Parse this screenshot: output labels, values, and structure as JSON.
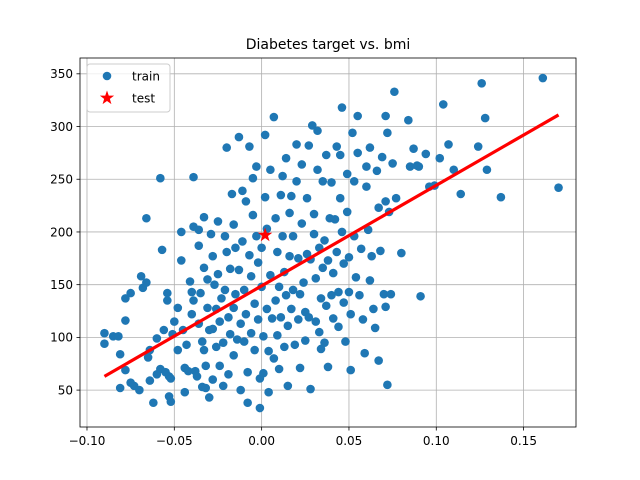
{
  "chart_data": {
    "type": "scatter",
    "title": "Diabetes target vs. bmi",
    "xlabel": "",
    "ylabel": "",
    "xlim": [
      -0.104,
      0.18
    ],
    "ylim": [
      15,
      365
    ],
    "xticks": [
      -0.1,
      -0.05,
      0.0,
      0.05,
      0.1,
      0.15
    ],
    "xtick_labels": [
      "−0.10",
      "−0.05",
      "0.00",
      "0.05",
      "0.10",
      "0.15"
    ],
    "yticks": [
      50,
      100,
      150,
      200,
      250,
      300,
      350
    ],
    "ytick_labels": [
      "50",
      "100",
      "150",
      "200",
      "250",
      "300",
      "350"
    ],
    "grid": true,
    "legend": {
      "placement": "top-left",
      "entries": [
        {
          "label": "train",
          "marker": "circle",
          "color": "#1f77b4"
        },
        {
          "label": "test",
          "marker": "star",
          "color": "#ff0000"
        }
      ]
    },
    "series": [
      {
        "name": "train",
        "kind": "scatter",
        "color": "#1f77b4",
        "points": [
          [
            -0.09,
            94
          ],
          [
            -0.09,
            104
          ],
          [
            -0.085,
            101
          ],
          [
            -0.082,
            101
          ],
          [
            -0.081,
            84
          ],
          [
            -0.081,
            52
          ],
          [
            -0.078,
            69
          ],
          [
            -0.078,
            116
          ],
          [
            -0.078,
            137
          ],
          [
            -0.075,
            142
          ],
          [
            -0.075,
            57
          ],
          [
            -0.073,
            54
          ],
          [
            -0.07,
            50
          ],
          [
            -0.069,
            158
          ],
          [
            -0.068,
            147
          ],
          [
            -0.066,
            213
          ],
          [
            -0.066,
            152
          ],
          [
            -0.065,
            81
          ],
          [
            -0.064,
            88
          ],
          [
            -0.064,
            59
          ],
          [
            -0.062,
            38
          ],
          [
            -0.06,
            99
          ],
          [
            -0.06,
            65
          ],
          [
            -0.058,
            251
          ],
          [
            -0.058,
            70
          ],
          [
            -0.057,
            183
          ],
          [
            -0.056,
            107
          ],
          [
            -0.055,
            67
          ],
          [
            -0.054,
            142
          ],
          [
            -0.054,
            135
          ],
          [
            -0.053,
            63
          ],
          [
            -0.053,
            44
          ],
          [
            -0.052,
            39
          ],
          [
            -0.052,
            61
          ],
          [
            -0.051,
            103
          ],
          [
            -0.05,
            115
          ],
          [
            -0.048,
            128
          ],
          [
            -0.048,
            88
          ],
          [
            -0.046,
            200
          ],
          [
            -0.046,
            173
          ],
          [
            -0.045,
            107
          ],
          [
            -0.044,
            71
          ],
          [
            -0.044,
            48
          ],
          [
            -0.043,
            93
          ],
          [
            -0.042,
            68
          ],
          [
            -0.041,
            153
          ],
          [
            -0.04,
            143
          ],
          [
            -0.04,
            122
          ],
          [
            -0.039,
            252
          ],
          [
            -0.039,
            205
          ],
          [
            -0.039,
            135
          ],
          [
            -0.038,
            68
          ],
          [
            -0.037,
            63
          ],
          [
            -0.036,
            202
          ],
          [
            -0.036,
            187
          ],
          [
            -0.036,
            113
          ],
          [
            -0.035,
            142
          ],
          [
            -0.034,
            96
          ],
          [
            -0.034,
            53
          ],
          [
            -0.033,
            214
          ],
          [
            -0.033,
            166
          ],
          [
            -0.033,
            88
          ],
          [
            -0.032,
            73
          ],
          [
            -0.032,
            52
          ],
          [
            -0.031,
            155
          ],
          [
            -0.031,
            128
          ],
          [
            -0.03,
            107
          ],
          [
            -0.03,
            43
          ],
          [
            -0.029,
            198
          ],
          [
            -0.028,
            177
          ],
          [
            -0.028,
            108
          ],
          [
            -0.028,
            60
          ],
          [
            -0.027,
            150
          ],
          [
            -0.026,
            127
          ],
          [
            -0.026,
            91
          ],
          [
            -0.025,
            210
          ],
          [
            -0.025,
            160
          ],
          [
            -0.024,
            115
          ],
          [
            -0.024,
            73
          ],
          [
            -0.023,
            137
          ],
          [
            -0.022,
            95
          ],
          [
            -0.022,
            54
          ],
          [
            -0.021,
            196
          ],
          [
            -0.021,
            145
          ],
          [
            -0.02,
            280
          ],
          [
            -0.02,
            181
          ],
          [
            -0.019,
            119
          ],
          [
            -0.019,
            65
          ],
          [
            -0.018,
            165
          ],
          [
            -0.018,
            103
          ],
          [
            -0.017,
            236
          ],
          [
            -0.016,
            207
          ],
          [
            -0.016,
            128
          ],
          [
            -0.016,
            83
          ],
          [
            -0.015,
            185
          ],
          [
            -0.015,
            141
          ],
          [
            -0.014,
            98
          ],
          [
            -0.013,
            290
          ],
          [
            -0.013,
            164
          ],
          [
            -0.012,
            113
          ],
          [
            -0.012,
            50
          ],
          [
            -0.011,
            239
          ],
          [
            -0.011,
            191
          ],
          [
            -0.01,
            145
          ],
          [
            -0.01,
            96
          ],
          [
            -0.009,
            229
          ],
          [
            -0.009,
            122
          ],
          [
            -0.008,
            67
          ],
          [
            -0.008,
            38
          ],
          [
            -0.007,
            281
          ],
          [
            -0.007,
            178
          ],
          [
            -0.006,
            158
          ],
          [
            -0.006,
            104
          ],
          [
            -0.005,
            251
          ],
          [
            -0.005,
            216
          ],
          [
            -0.004,
            132
          ],
          [
            -0.004,
            88
          ],
          [
            -0.003,
            262
          ],
          [
            -0.003,
            196
          ],
          [
            -0.002,
            171
          ],
          [
            -0.002,
            117
          ],
          [
            -0.001,
            61
          ],
          [
            -0.001,
            33
          ],
          [
            0.0,
            185
          ],
          [
            0.0,
            148
          ],
          [
            0.001,
            101
          ],
          [
            0.001,
            66
          ],
          [
            0.002,
            292
          ],
          [
            0.002,
            233
          ],
          [
            0.003,
            203
          ],
          [
            0.003,
            127
          ],
          [
            0.004,
            87
          ],
          [
            0.004,
            48
          ],
          [
            0.005,
            259
          ],
          [
            0.005,
            159
          ],
          [
            0.006,
            118
          ],
          [
            0.007,
            309
          ],
          [
            0.007,
            80
          ],
          [
            0.008,
            213
          ],
          [
            0.008,
            135
          ],
          [
            0.009,
            181
          ],
          [
            0.009,
            102
          ],
          [
            0.01,
            148
          ],
          [
            0.01,
            70
          ],
          [
            0.011,
            235
          ],
          [
            0.011,
            119
          ],
          [
            0.012,
            253
          ],
          [
            0.012,
            196
          ],
          [
            0.013,
            162
          ],
          [
            0.013,
            91
          ],
          [
            0.014,
            270
          ],
          [
            0.014,
            140
          ],
          [
            0.015,
            111
          ],
          [
            0.015,
            54
          ],
          [
            0.016,
            218
          ],
          [
            0.016,
            177
          ],
          [
            0.017,
            234
          ],
          [
            0.017,
            127
          ],
          [
            0.018,
            196
          ],
          [
            0.018,
            145
          ],
          [
            0.019,
            93
          ],
          [
            0.02,
            283
          ],
          [
            0.02,
            248
          ],
          [
            0.021,
            175
          ],
          [
            0.021,
            117
          ],
          [
            0.022,
            141
          ],
          [
            0.022,
            71
          ],
          [
            0.023,
            264
          ],
          [
            0.023,
            208
          ],
          [
            0.024,
            152
          ],
          [
            0.025,
            124
          ],
          [
            0.025,
            97
          ],
          [
            0.026,
            232
          ],
          [
            0.026,
            179
          ],
          [
            0.027,
            282
          ],
          [
            0.027,
            119
          ],
          [
            0.028,
            174
          ],
          [
            0.028,
            51
          ],
          [
            0.029,
            301
          ],
          [
            0.03,
            217
          ],
          [
            0.03,
            198
          ],
          [
            0.031,
            156
          ],
          [
            0.031,
            115
          ],
          [
            0.032,
            296
          ],
          [
            0.032,
            259
          ],
          [
            0.033,
            185
          ],
          [
            0.033,
            105
          ],
          [
            0.034,
            137
          ],
          [
            0.034,
            89
          ],
          [
            0.035,
            248
          ],
          [
            0.035,
            166
          ],
          [
            0.036,
            192
          ],
          [
            0.036,
            95
          ],
          [
            0.037,
            273
          ],
          [
            0.037,
            130
          ],
          [
            0.038,
            173
          ],
          [
            0.038,
            72
          ],
          [
            0.039,
            213
          ],
          [
            0.04,
            140
          ],
          [
            0.04,
            247
          ],
          [
            0.041,
            161
          ],
          [
            0.041,
            118
          ],
          [
            0.042,
            212
          ],
          [
            0.043,
            281
          ],
          [
            0.043,
            181
          ],
          [
            0.044,
            143
          ],
          [
            0.044,
            110
          ],
          [
            0.045,
            273
          ],
          [
            0.045,
            232
          ],
          [
            0.046,
            318
          ],
          [
            0.046,
            200
          ],
          [
            0.047,
            170
          ],
          [
            0.047,
            133
          ],
          [
            0.048,
            96
          ],
          [
            0.049,
            255
          ],
          [
            0.049,
            219
          ],
          [
            0.05,
            143
          ],
          [
            0.05,
            176
          ],
          [
            0.051,
            122
          ],
          [
            0.051,
            69
          ],
          [
            0.052,
            294
          ],
          [
            0.053,
            196
          ],
          [
            0.053,
            248
          ],
          [
            0.054,
            157
          ],
          [
            0.055,
            310
          ],
          [
            0.055,
            275
          ],
          [
            0.056,
            140
          ],
          [
            0.057,
            184
          ],
          [
            0.058,
            117
          ],
          [
            0.059,
            85
          ],
          [
            0.06,
            243
          ],
          [
            0.06,
            262
          ],
          [
            0.061,
            202
          ],
          [
            0.062,
            280
          ],
          [
            0.062,
            154
          ],
          [
            0.063,
            177
          ],
          [
            0.064,
            127
          ],
          [
            0.065,
            109
          ],
          [
            0.066,
            258
          ],
          [
            0.067,
            223
          ],
          [
            0.067,
            78
          ],
          [
            0.068,
            182
          ],
          [
            0.069,
            271
          ],
          [
            0.07,
            141
          ],
          [
            0.071,
            310
          ],
          [
            0.071,
            229
          ],
          [
            0.071,
            129
          ],
          [
            0.072,
            294
          ],
          [
            0.072,
            55
          ],
          [
            0.073,
            219
          ],
          [
            0.074,
            141
          ],
          [
            0.075,
            265
          ],
          [
            0.076,
            333
          ],
          [
            0.077,
            232
          ],
          [
            0.08,
            180
          ],
          [
            0.084,
            306
          ],
          [
            0.085,
            262
          ],
          [
            0.087,
            279
          ],
          [
            0.089,
            263
          ],
          [
            0.09,
            262
          ],
          [
            0.091,
            139
          ],
          [
            0.094,
            274
          ],
          [
            0.096,
            243
          ],
          [
            0.099,
            244
          ],
          [
            0.102,
            270
          ],
          [
            0.104,
            321
          ],
          [
            0.107,
            283
          ],
          [
            0.11,
            259
          ],
          [
            0.114,
            236
          ],
          [
            0.124,
            281
          ],
          [
            0.126,
            341
          ],
          [
            0.128,
            308
          ],
          [
            0.129,
            259
          ],
          [
            0.137,
            233
          ],
          [
            0.161,
            346
          ],
          [
            0.17,
            242
          ]
        ]
      },
      {
        "name": "test",
        "kind": "scatter",
        "marker": "star",
        "color": "#ff0000",
        "points": [
          [
            0.002,
            197
          ]
        ]
      },
      {
        "name": "",
        "kind": "line",
        "color": "#ff0000",
        "points": [
          [
            -0.09,
            63
          ],
          [
            0.17,
            311
          ]
        ]
      }
    ]
  }
}
